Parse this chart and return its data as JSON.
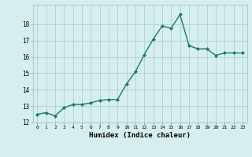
{
  "x": [
    0,
    1,
    2,
    3,
    4,
    5,
    6,
    7,
    8,
    9,
    10,
    11,
    12,
    13,
    14,
    15,
    16,
    17,
    18,
    19,
    20,
    21,
    22,
    23
  ],
  "y": [
    12.5,
    12.6,
    12.4,
    12.9,
    13.1,
    13.1,
    13.2,
    13.35,
    13.4,
    13.4,
    14.35,
    15.1,
    16.15,
    17.1,
    17.9,
    17.75,
    18.6,
    16.7,
    16.5,
    16.5,
    16.1,
    16.25,
    16.25,
    16.25
  ],
  "xlabel": "Humidex (Indice chaleur)",
  "ylim": [
    12,
    19
  ],
  "xlim": [
    -0.5,
    23.5
  ],
  "yticks": [
    12,
    13,
    14,
    15,
    16,
    17,
    18
  ],
  "xticks": [
    0,
    1,
    2,
    3,
    4,
    5,
    6,
    7,
    8,
    9,
    10,
    11,
    12,
    13,
    14,
    15,
    16,
    17,
    18,
    19,
    20,
    21,
    22,
    23
  ],
  "line_color": "#1a7a6a",
  "marker_color": "#1a7a6a",
  "bg_color": "#d6eeee",
  "grid_color": "#b0d0d0"
}
